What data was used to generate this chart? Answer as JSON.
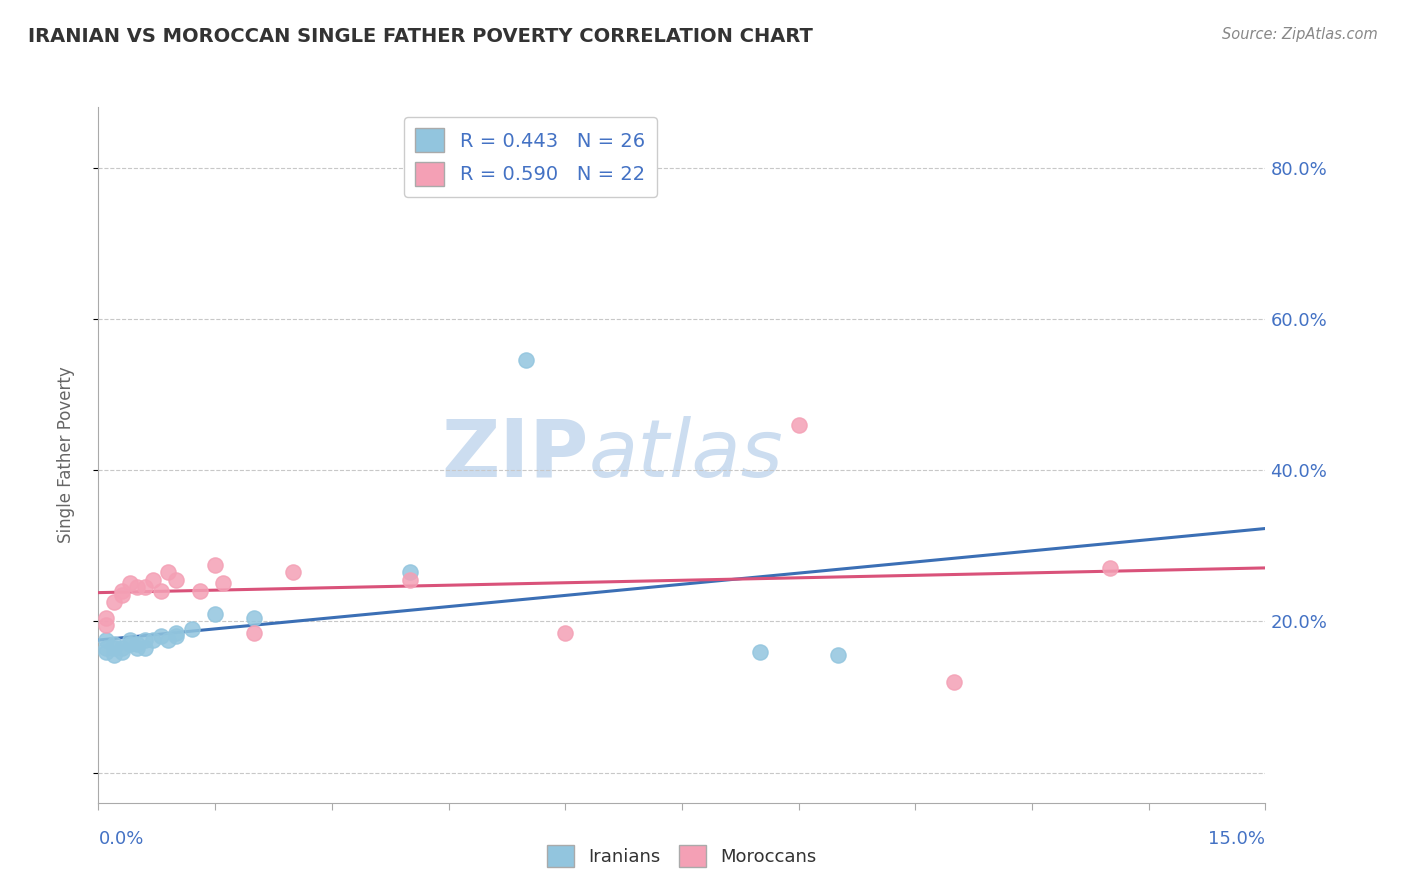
{
  "title": "IRANIAN VS MOROCCAN SINGLE FATHER POVERTY CORRELATION CHART",
  "source": "Source: ZipAtlas.com",
  "ylabel": "Single Father Poverty",
  "y_ticks": [
    0.0,
    0.2,
    0.4,
    0.6,
    0.8
  ],
  "y_tick_labels": [
    "",
    "20.0%",
    "40.0%",
    "60.0%",
    "80.0%"
  ],
  "x_lim": [
    0.0,
    0.15
  ],
  "y_lim": [
    -0.04,
    0.88
  ],
  "legend_iranian": "R = 0.443   N = 26",
  "legend_moroccan": "R = 0.590   N = 22",
  "iranian_color": "#92c5de",
  "moroccan_color": "#f4a0b5",
  "trendline_iranian_color": "#3b6fb5",
  "trendline_moroccan_color": "#d9527a",
  "watermark_zip": "ZIP",
  "watermark_atlas": "atlas",
  "iranian_x": [
    0.001,
    0.001,
    0.001,
    0.002,
    0.002,
    0.002,
    0.003,
    0.003,
    0.004,
    0.004,
    0.005,
    0.005,
    0.006,
    0.006,
    0.007,
    0.008,
    0.009,
    0.01,
    0.01,
    0.012,
    0.015,
    0.02,
    0.04,
    0.055,
    0.085,
    0.095
  ],
  "iranian_y": [
    0.175,
    0.165,
    0.16,
    0.17,
    0.165,
    0.155,
    0.165,
    0.16,
    0.175,
    0.17,
    0.17,
    0.165,
    0.175,
    0.165,
    0.175,
    0.18,
    0.175,
    0.18,
    0.185,
    0.19,
    0.21,
    0.205,
    0.265,
    0.545,
    0.16,
    0.155
  ],
  "moroccan_x": [
    0.001,
    0.001,
    0.002,
    0.003,
    0.003,
    0.004,
    0.005,
    0.006,
    0.007,
    0.008,
    0.009,
    0.01,
    0.013,
    0.015,
    0.016,
    0.02,
    0.025,
    0.04,
    0.06,
    0.09,
    0.11,
    0.13
  ],
  "moroccan_y": [
    0.205,
    0.195,
    0.225,
    0.24,
    0.235,
    0.25,
    0.245,
    0.245,
    0.255,
    0.24,
    0.265,
    0.255,
    0.24,
    0.275,
    0.25,
    0.185,
    0.265,
    0.255,
    0.185,
    0.46,
    0.12,
    0.27
  ],
  "background_color": "#ffffff",
  "grid_color": "#c8c8c8",
  "title_color": "#333333",
  "axis_label_color": "#4472c4",
  "ylabel_color": "#666666",
  "source_color": "#888888"
}
